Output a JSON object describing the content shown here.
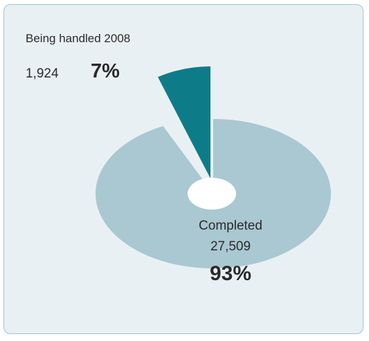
{
  "chart_data": {
    "type": "pie",
    "slices": [
      {
        "label": "Completed",
        "count": "27,509",
        "percent_text": "93%",
        "value": 93,
        "color": "#a9c8d2"
      },
      {
        "label": "Being handled 2008",
        "count": "1,924",
        "percent_text": "7%",
        "value": 7,
        "color": "#0e7c88"
      }
    ]
  }
}
